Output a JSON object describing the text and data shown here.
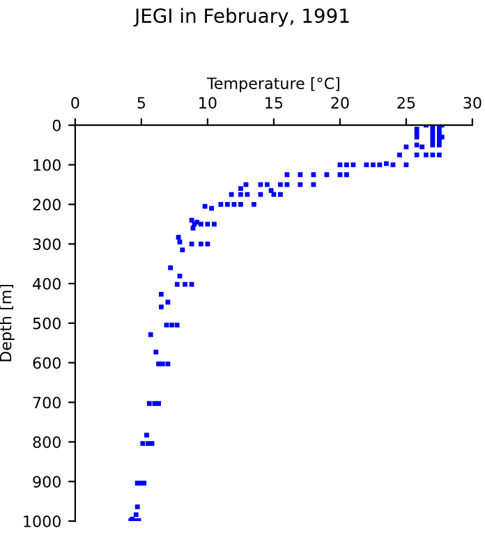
{
  "chart_data": {
    "type": "scatter",
    "title": "JEGI in February, 1991",
    "xlabel": "Temperature [°C]",
    "ylabel": "Depth [m]",
    "marker": "square",
    "grid": false,
    "xlim": [
      0,
      30
    ],
    "xticks": [
      0,
      5,
      10,
      15,
      20,
      25,
      30
    ],
    "ylim": [
      1000,
      0
    ],
    "yticks": [
      0,
      100,
      200,
      300,
      400,
      500,
      600,
      700,
      800,
      900,
      1000
    ],
    "series": [
      {
        "color": "#0000ff",
        "x": [
          26.5,
          27,
          27.5,
          27.7,
          27,
          27.5,
          27,
          27.5,
          27,
          27.5,
          27.7,
          27,
          27.5,
          25.8,
          25.8,
          25.8,
          25,
          25.8,
          26.2,
          27,
          27.5,
          24.5,
          25.8,
          26.5,
          27,
          27.5,
          20,
          20.5,
          21,
          22,
          22.5,
          23,
          23.5,
          24,
          25,
          16,
          17,
          18,
          19,
          20,
          20.5,
          12.9,
          14,
          14.5,
          15.5,
          16,
          17,
          18,
          12.5,
          14.8,
          11.8,
          12.5,
          13,
          14,
          15,
          15.5,
          11,
          11.5,
          12,
          12.5,
          13.5,
          9.8,
          10.3,
          8.8,
          9.2,
          9,
          9.5,
          10,
          10.5,
          8.9,
          7.8,
          7.9,
          8.1,
          8.8,
          9.5,
          10,
          7.2,
          7.9,
          7.7,
          8.3,
          8.8,
          6.5,
          7,
          6.5,
          6.9,
          7.3,
          7.7,
          5.7,
          6.1,
          6.3,
          6.6,
          7,
          5.6,
          6,
          6.3,
          5.4,
          5.1,
          5.5,
          5.8,
          4.7,
          5,
          5.2,
          4.7,
          4.6,
          4.3,
          4.2,
          4.5,
          4.8
        ],
        "values": [
          0,
          0,
          0,
          0,
          10,
          10,
          20,
          20,
          30,
          30,
          30,
          40,
          40,
          10,
          20,
          30,
          55,
          50,
          55,
          50,
          50,
          75,
          75,
          75,
          75,
          75,
          100,
          100,
          100,
          100,
          100,
          100,
          97,
          100,
          100,
          125,
          125,
          125,
          125,
          125,
          125,
          150,
          150,
          150,
          150,
          150,
          150,
          150,
          160,
          165,
          175,
          175,
          175,
          175,
          175,
          175,
          200,
          200,
          200,
          200,
          200,
          205,
          210,
          240,
          245,
          250,
          250,
          250,
          250,
          260,
          283,
          295,
          315,
          300,
          300,
          300,
          360,
          381,
          402,
          402,
          402,
          427,
          447,
          459,
          505,
          505,
          505,
          529,
          573,
          603,
          603,
          603,
          703,
          703,
          703,
          783,
          804,
          804,
          804,
          904,
          904,
          904,
          964,
          984,
          995,
          999,
          999,
          999
        ]
      }
    ]
  }
}
